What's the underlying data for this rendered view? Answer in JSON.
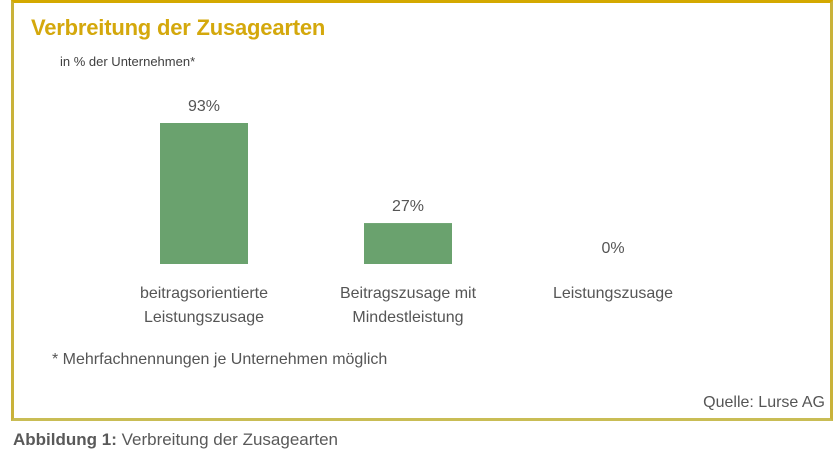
{
  "chart_data": {
    "type": "bar",
    "title": "Verbreitung der Zusagearten",
    "subtitle": "in % der Unternehmen*",
    "categories": [
      [
        "beitragsorientierte",
        "Leistungszusage"
      ],
      [
        "Beitragszusage mit",
        "Mindestleistung"
      ],
      [
        "Leistungszusage"
      ]
    ],
    "values": [
      93,
      27,
      0
    ],
    "data_labels": [
      "93%",
      "27%",
      "0%"
    ],
    "ylim": [
      0,
      100
    ],
    "grid": false,
    "bar_color": "#6aa26e",
    "footnote": "* Mehrfachnennungen je Unternehmen möglich",
    "source": "Quelle: Lurse AG"
  },
  "caption": {
    "label": "Abbildung 1:",
    "text": " Verbreitung der Zusagearten"
  },
  "colors": {
    "title": "#d4a80c",
    "frame": "#c9b23a",
    "text": "#555555"
  }
}
